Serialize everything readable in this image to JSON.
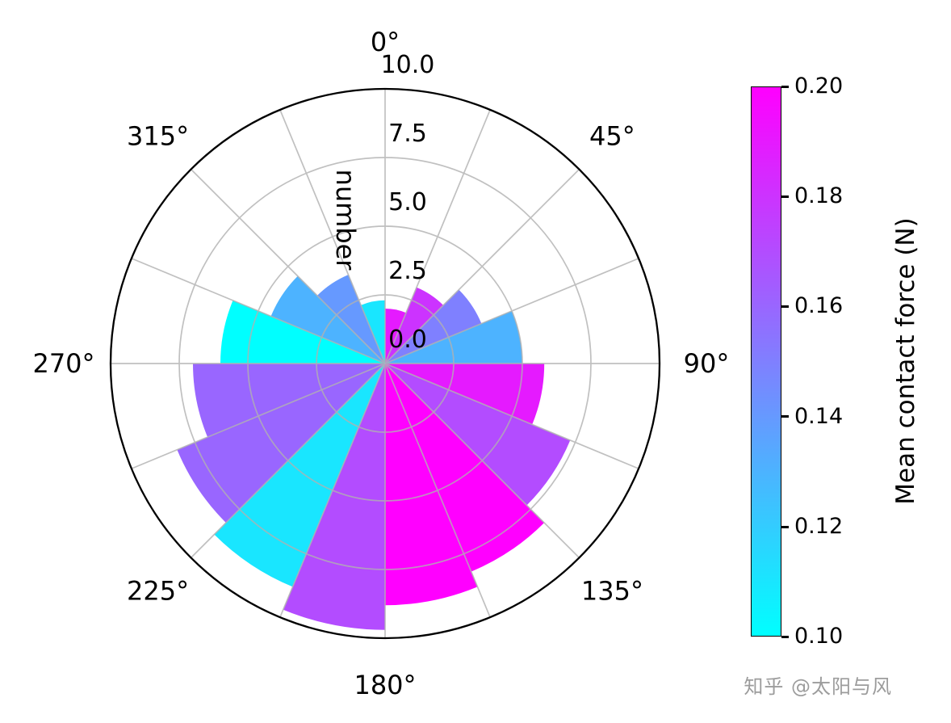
{
  "watermark": "知乎 @太阳与风",
  "chart_data": {
    "type": "polar_bar",
    "title": "",
    "radial_label": "number",
    "radial_ticks": [
      0,
      2.5,
      5,
      7.5,
      10
    ],
    "radial_max": 10,
    "grid": true,
    "angular_tick_labels": [
      "0°",
      "45°",
      "90°",
      "135°",
      "180°",
      "225°",
      "270°",
      "315°"
    ],
    "angular_direction": "clockwise",
    "zero_location": "north",
    "sector_width_deg": 22.5,
    "sectors": [
      {
        "start_deg": 0.0,
        "number": 2.0,
        "force": 0.19
      },
      {
        "start_deg": 22.5,
        "number": 3.0,
        "force": 0.18
      },
      {
        "start_deg": 45.0,
        "number": 3.8,
        "force": 0.15
      },
      {
        "start_deg": 67.5,
        "number": 5.0,
        "force": 0.13
      },
      {
        "start_deg": 90.0,
        "number": 5.8,
        "force": 0.19
      },
      {
        "start_deg": 112.5,
        "number": 7.3,
        "force": 0.17
      },
      {
        "start_deg": 135.0,
        "number": 8.2,
        "force": 0.2
      },
      {
        "start_deg": 157.5,
        "number": 8.8,
        "force": 0.2
      },
      {
        "start_deg": 180.0,
        "number": 9.7,
        "force": 0.17
      },
      {
        "start_deg": 202.5,
        "number": 8.8,
        "force": 0.11
      },
      {
        "start_deg": 225.0,
        "number": 8.2,
        "force": 0.16
      },
      {
        "start_deg": 247.5,
        "number": 7.0,
        "force": 0.16
      },
      {
        "start_deg": 270.0,
        "number": 6.0,
        "force": 0.1
      },
      {
        "start_deg": 292.5,
        "number": 4.5,
        "force": 0.13
      },
      {
        "start_deg": 315.0,
        "number": 3.5,
        "force": 0.14
      },
      {
        "start_deg": 337.5,
        "number": 2.3,
        "force": 0.11
      }
    ],
    "colorbar": {
      "label": "Mean contact force (N)",
      "min": 0.1,
      "max": 0.2,
      "ticks": [
        "0.20",
        "0.18",
        "0.16",
        "0.14",
        "0.12",
        "0.10"
      ],
      "cmap": "cool",
      "color_min": "#00ffff",
      "color_max": "#ff00ff"
    }
  }
}
